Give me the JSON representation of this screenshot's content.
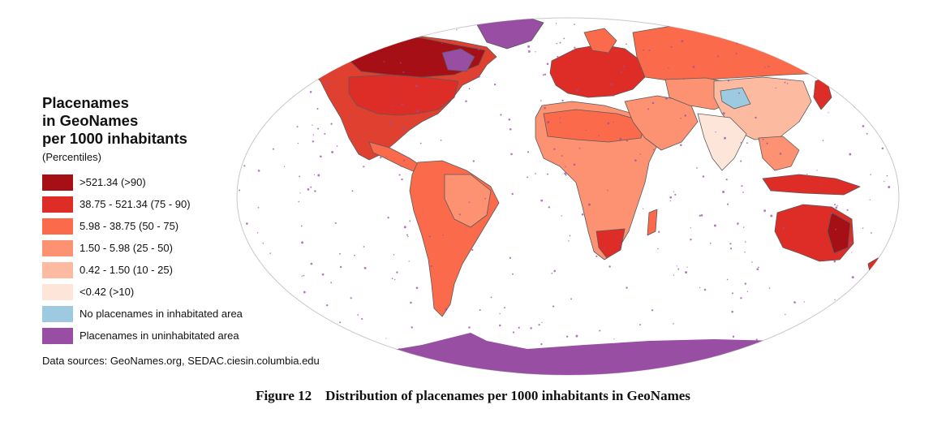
{
  "legend": {
    "title_lines": [
      "Placenames",
      "in GeoNames",
      "per 1000 inhabitants"
    ],
    "subtitle": "(Percentiles)",
    "items": [
      {
        "label": ">521.34 (>90)",
        "color": "#a50f15"
      },
      {
        "label": "38.75 - 521.34 (75 - 90)",
        "color": "#de2d26"
      },
      {
        "label": "5.98 - 38.75 (50 - 75)",
        "color": "#fb6a4a"
      },
      {
        "label": "1.50 - 5.98 (25 - 50)",
        "color": "#fc9272"
      },
      {
        "label": "0.42 - 1.50 (10 - 25)",
        "color": "#fcbba1"
      },
      {
        "label": "<0.42 (>10)",
        "color": "#fee5d9"
      },
      {
        "label": "No placenames in inhabitated area",
        "color": "#9ecae1"
      },
      {
        "label": "Placenames in uninhabitated area",
        "color": "#984ea3"
      }
    ]
  },
  "source": "Data sources: GeoNames.org, SEDAC.ciesin.columbia.edu",
  "caption": "Figure 12    Distribution of placenames per 1000 inhabitants in GeoNames",
  "map": {
    "projection": "Robinson",
    "ocean_color": "#ffffff",
    "border_color": "#5a5a5a"
  }
}
